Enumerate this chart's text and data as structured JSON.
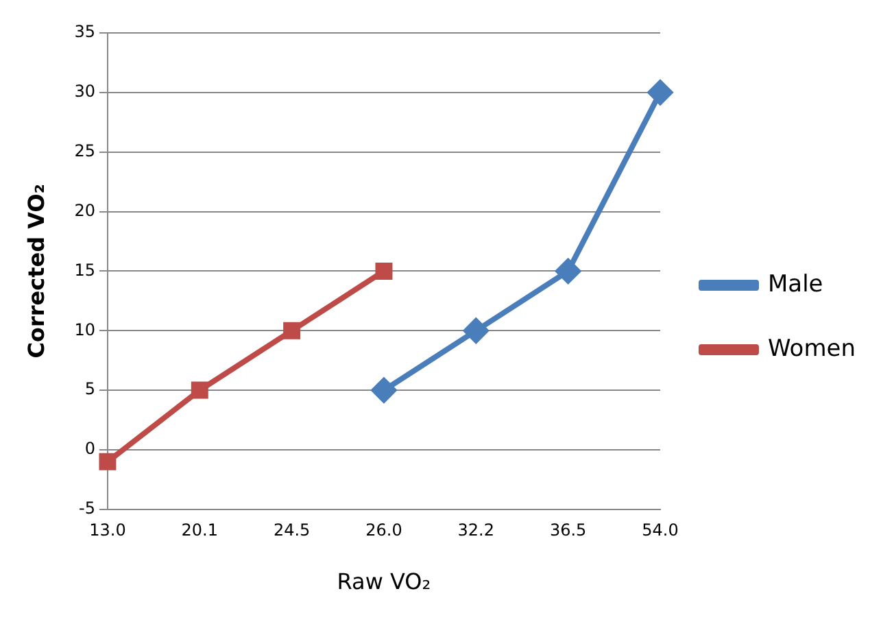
{
  "chart_data": {
    "type": "line",
    "xlabel": "Raw VO₂",
    "ylabel": "Corrected VO₂",
    "categories": [
      "13.0",
      "20.1",
      "24.5",
      "26.0",
      "32.2",
      "36.5",
      "54.0"
    ],
    "series": [
      {
        "name": "Male",
        "color": "#4a7ebb",
        "marker": "diamond",
        "values": [
          null,
          null,
          null,
          5,
          10,
          15,
          30
        ]
      },
      {
        "name": "Women",
        "color": "#be4b48",
        "marker": "square",
        "values": [
          -1,
          5,
          10,
          15,
          null,
          null,
          null
        ]
      }
    ],
    "ylim": [
      -5,
      35
    ],
    "yticks": [
      -5,
      0,
      5,
      10,
      15,
      20,
      25,
      30,
      35
    ],
    "grid": "y",
    "legend": "right",
    "line_style": "solid"
  }
}
